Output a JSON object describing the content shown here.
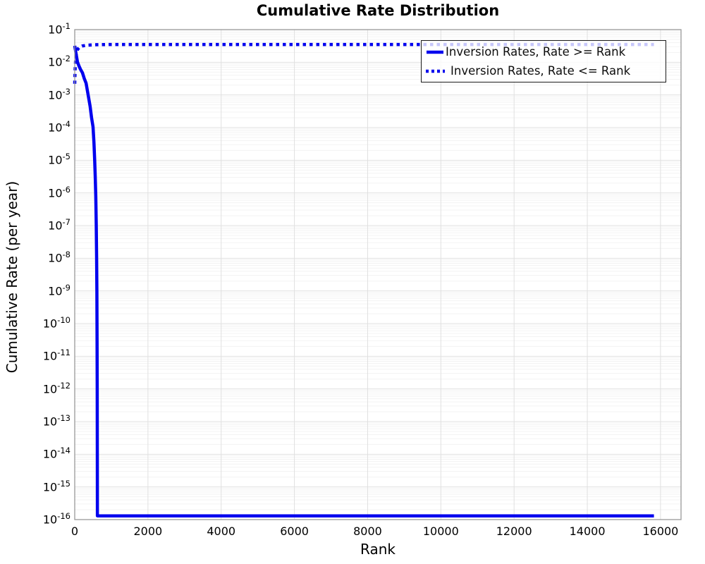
{
  "title": "Cumulative Rate Distribution",
  "axes": {
    "xlabel": "Rank",
    "ylabel": "Cumulative Rate (per year)"
  },
  "colors": {
    "line_blue": "#0000ee",
    "grid_major": "#e0e0e0",
    "grid_minor": "#f3f3f3",
    "spine": "#999999",
    "legend_border": "#1a1a1a"
  },
  "chart_data": {
    "type": "line",
    "title": "Cumulative Rate Distribution",
    "xlabel": "Rank",
    "ylabel": "Cumulative Rate (per year)",
    "x_scale": "linear",
    "y_scale": "log",
    "xlim": [
      0,
      16560
    ],
    "ylim": [
      1e-16,
      0.1
    ],
    "x_ticks": [
      0,
      2000,
      4000,
      6000,
      8000,
      10000,
      12000,
      14000,
      16000
    ],
    "y_tick_exponents": [
      -1,
      -2,
      -3,
      -4,
      -5,
      -6,
      -7,
      -8,
      -9,
      -10,
      -11,
      -12,
      -13,
      -14,
      -15,
      -16
    ],
    "grid": true,
    "legend_position": "top-right",
    "series": [
      {
        "name": "Inversion Rates, Rate >= Rank",
        "style": "solid",
        "color": "#0000ee",
        "points": [
          [
            0,
            0.032
          ],
          [
            30,
            0.02
          ],
          [
            77,
            0.01
          ],
          [
            120,
            0.0075
          ],
          [
            160,
            0.006
          ],
          [
            210,
            0.0048
          ],
          [
            260,
            0.0032
          ],
          [
            310,
            0.0023
          ],
          [
            366,
            0.001
          ],
          [
            420,
            0.00045
          ],
          [
            460,
            0.0002
          ],
          [
            500,
            0.000105
          ],
          [
            525,
            3.5e-05
          ],
          [
            545,
            1e-05
          ],
          [
            560,
            3.2e-06
          ],
          [
            575,
            8e-07
          ],
          [
            588,
            1e-07
          ],
          [
            598,
            1e-08
          ],
          [
            605,
            1e-09
          ],
          [
            610,
            3e-11
          ],
          [
            614,
            1e-12
          ],
          [
            617,
            1e-14
          ],
          [
            619,
            1.3e-16
          ],
          [
            15820,
            1.3e-16
          ]
        ]
      },
      {
        "name": "Inversion Rates, Rate <= Rank",
        "style": "dotted",
        "color": "#0000ee",
        "points": [
          [
            0,
            0.0022
          ],
          [
            10,
            0.006
          ],
          [
            25,
            0.012
          ],
          [
            45,
            0.019
          ],
          [
            80,
            0.025
          ],
          [
            130,
            0.029
          ],
          [
            200,
            0.0315
          ],
          [
            350,
            0.0335
          ],
          [
            600,
            0.0345
          ],
          [
            1000,
            0.035
          ],
          [
            15820,
            0.035
          ]
        ]
      }
    ]
  }
}
